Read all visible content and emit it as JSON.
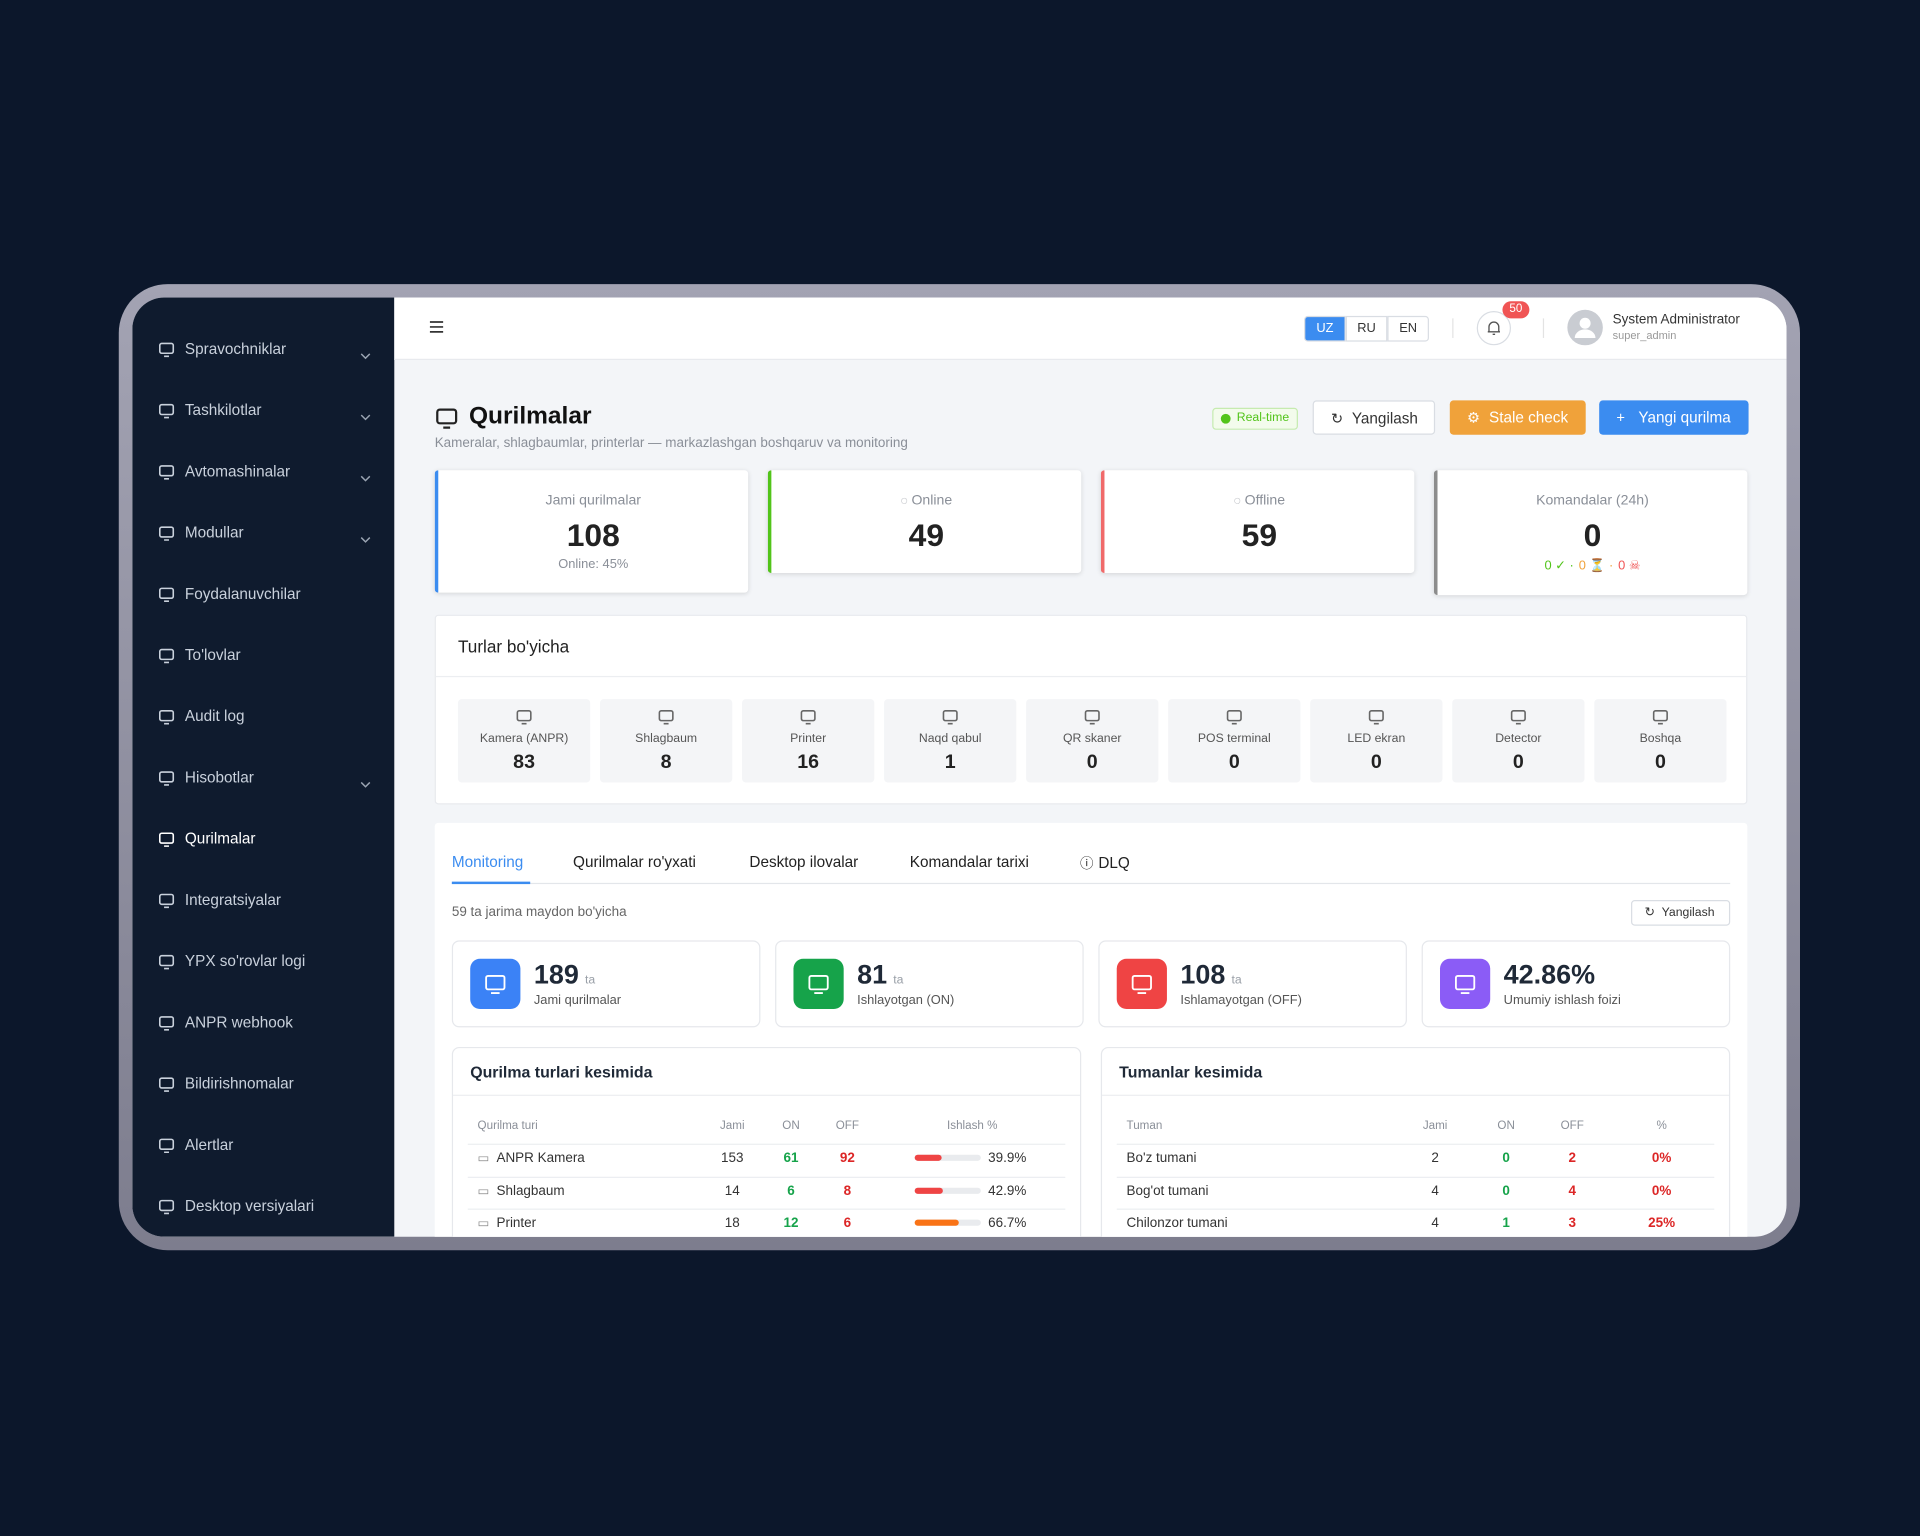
{
  "sidebar": {
    "items": [
      {
        "label": "Spravochniklar",
        "expandable": true
      },
      {
        "label": "Tashkilotlar",
        "expandable": true
      },
      {
        "label": "Avtomashinalar",
        "expandable": true
      },
      {
        "label": "Modullar",
        "expandable": true
      },
      {
        "label": "Foydalanuvchilar",
        "expandable": false
      },
      {
        "label": "To'lovlar",
        "expandable": false
      },
      {
        "label": "Audit log",
        "expandable": false
      },
      {
        "label": "Hisobotlar",
        "expandable": true
      },
      {
        "label": "Qurilmalar",
        "expandable": false,
        "active": true
      },
      {
        "label": "Integratsiyalar",
        "expandable": false
      },
      {
        "label": "YPX so'rovlar logi",
        "expandable": false
      },
      {
        "label": "ANPR webhook",
        "expandable": false
      },
      {
        "label": "Bildirishnomalar",
        "expandable": false
      },
      {
        "label": "Alertlar",
        "expandable": false
      },
      {
        "label": "Desktop versiyalari",
        "expandable": false
      }
    ]
  },
  "header": {
    "languages": [
      {
        "label": "UZ",
        "active": true
      },
      {
        "label": "RU"
      },
      {
        "label": "EN"
      }
    ],
    "notification_count": 50,
    "user": {
      "name": "System Administrator",
      "role": "super_admin"
    }
  },
  "page": {
    "title": "Qurilmalar",
    "subtitle": "Kameralar, shlagbaumlar, printerlar — markazlashgan boshqaruv va monitoring",
    "badge": "Real-time",
    "buttons": [
      "Yangilash",
      "Stale check",
      "Yangi qurilma"
    ]
  },
  "stats": [
    {
      "label": "Jami qurilmalar",
      "value": 108,
      "note": "Online: 45%",
      "color": "#3b8cf0"
    },
    {
      "label": "Online",
      "value": 49,
      "color": "#52c41a"
    },
    {
      "label": "Offline",
      "value": 59,
      "color": "#f06a6a"
    },
    {
      "label": "Komandalar (24h)",
      "value": 0,
      "note_parts": [
        "0 ✓ ·",
        "0 ⏳ ·",
        "0 ☠"
      ],
      "color": "#8c8c8c"
    }
  ],
  "types": {
    "title": "Turlar bo'yicha",
    "items": [
      {
        "label": "Kamera (ANPR)",
        "value": 83
      },
      {
        "label": "Shlagbaum",
        "value": 8
      },
      {
        "label": "Printer",
        "value": 16
      },
      {
        "label": "Naqd qabul",
        "value": 1
      },
      {
        "label": "QR skaner",
        "value": 0
      },
      {
        "label": "POS terminal",
        "value": 0
      },
      {
        "label": "LED ekran",
        "value": 0
      },
      {
        "label": "Detector",
        "value": 0
      },
      {
        "label": "Boshqa",
        "value": 0
      }
    ]
  },
  "tabs": [
    {
      "label": "Monitoring",
      "active": true
    },
    {
      "label": "Qurilmalar ro'yxati"
    },
    {
      "label": "Desktop ilovalar"
    },
    {
      "label": "Komandalar tarixi"
    },
    {
      "label": "DLQ"
    }
  ],
  "monitoring": {
    "note": "59 ta jarima maydon bo'yicha",
    "refresh": "Yangilash",
    "kpis": [
      {
        "value": 189,
        "unit": "ta",
        "label": "Jami qurilmalar",
        "color": "#3b82f6"
      },
      {
        "value": 81,
        "unit": "ta",
        "label": "Ishlayotgan (ON)",
        "color": "#16a34a"
      },
      {
        "value": 108,
        "unit": "ta",
        "label": "Ishlamayotgan (OFF)",
        "color": "#ef4444"
      },
      {
        "value": "42.86%",
        "label": "Umumiy ishlash foizi",
        "color": "#8b5cf6"
      }
    ],
    "device_types": {
      "title": "Qurilma turlari kesimida",
      "columns": [
        "Qurilma turi",
        "Jami",
        "ON",
        "OFF",
        "Ishlash %"
      ],
      "rows": [
        [
          "ANPR Kamera",
          153,
          61,
          92,
          "39.9%"
        ],
        [
          "Shlagbaum",
          14,
          6,
          8,
          "42.9%"
        ],
        [
          "Printer",
          18,
          12,
          6,
          "66.7%"
        ]
      ]
    },
    "districts": {
      "title": "Tumanlar kesimida",
      "columns": [
        "Tuman",
        "Jami",
        "ON",
        "OFF",
        "%"
      ],
      "rows": [
        [
          "Bo'z tumani",
          2,
          0,
          2,
          "0%"
        ],
        [
          "Bog'ot tumani",
          4,
          0,
          4,
          "0%"
        ],
        [
          "Chilonzor tumani",
          4,
          1,
          3,
          "25%"
        ]
      ]
    }
  }
}
